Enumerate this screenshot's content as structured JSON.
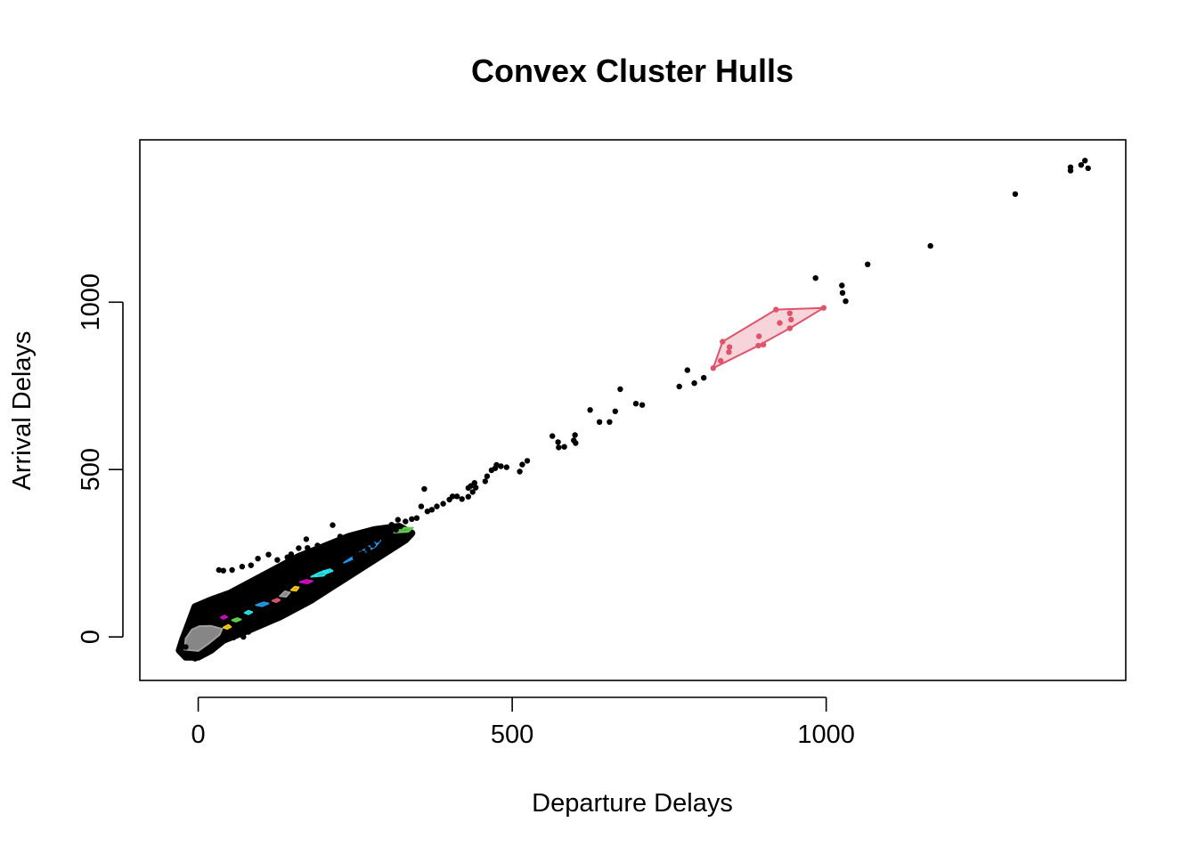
{
  "chart_data": {
    "type": "scatter",
    "title": "Convex Cluster Hulls",
    "xlabel": "Departure Delays",
    "ylabel": "Arrival Delays",
    "xlim": [
      -93,
      1477
    ],
    "ylim": [
      -130,
      1485
    ],
    "x_ticks": [
      0,
      500,
      1000
    ],
    "y_ticks": [
      0,
      500,
      1000
    ],
    "x_tick_labels": [
      "0",
      "500",
      "1000"
    ],
    "y_tick_labels": [
      "0",
      "500",
      "1000"
    ],
    "point_color": "#000000",
    "points": [
      [
        1412,
        1423
      ],
      [
        1406,
        1410
      ],
      [
        1389,
        1403
      ],
      [
        1417,
        1400
      ],
      [
        1389,
        1393
      ],
      [
        1301,
        1323
      ],
      [
        1166,
        1168
      ],
      [
        1066,
        1113
      ],
      [
        1025,
        1050
      ],
      [
        1026,
        1028
      ],
      [
        1031,
        1003
      ],
      [
        983,
        1072
      ],
      [
        779,
        797
      ],
      [
        790,
        758
      ],
      [
        805,
        774
      ],
      [
        766,
        748
      ],
      [
        672,
        740
      ],
      [
        697,
        697
      ],
      [
        707,
        693
      ],
      [
        664,
        674
      ],
      [
        624,
        678
      ],
      [
        655,
        642
      ],
      [
        639,
        642
      ],
      [
        564,
        600
      ],
      [
        573,
        582
      ],
      [
        574,
        566
      ],
      [
        583,
        568
      ],
      [
        600,
        603
      ],
      [
        598,
        587
      ],
      [
        601,
        579
      ],
      [
        524,
        526
      ],
      [
        516,
        515
      ],
      [
        512,
        494
      ],
      [
        491,
        507
      ],
      [
        482,
        510
      ],
      [
        475,
        514
      ],
      [
        473,
        504
      ],
      [
        467,
        498
      ],
      [
        460,
        480
      ],
      [
        457,
        465
      ],
      [
        440,
        460
      ],
      [
        434,
        451
      ],
      [
        430,
        445
      ],
      [
        442,
        446
      ],
      [
        437,
        433
      ],
      [
        430,
        419
      ],
      [
        420,
        412
      ],
      [
        412,
        420
      ],
      [
        400,
        410
      ],
      [
        390,
        398
      ],
      [
        380,
        390
      ],
      [
        372,
        380
      ],
      [
        365,
        375
      ],
      [
        405,
        420
      ],
      [
        360,
        442
      ],
      [
        348,
        355
      ],
      [
        340,
        352
      ],
      [
        330,
        345
      ],
      [
        322,
        330
      ],
      [
        315,
        320
      ],
      [
        305,
        310
      ],
      [
        295,
        302
      ],
      [
        290,
        305
      ],
      [
        285,
        290
      ],
      [
        278,
        275
      ],
      [
        270,
        262
      ],
      [
        262,
        250
      ],
      [
        255,
        245
      ],
      [
        250,
        238
      ],
      [
        355,
        390
      ],
      [
        318,
        350
      ],
      [
        308,
        335
      ],
      [
        300,
        322
      ],
      [
        286,
        318
      ],
      [
        272,
        300
      ],
      [
        260,
        305
      ],
      [
        240,
        290
      ],
      [
        226,
        300
      ],
      [
        214,
        334
      ],
      [
        172,
        292
      ],
      [
        190,
        273
      ],
      [
        174,
        266
      ],
      [
        160,
        265
      ],
      [
        148,
        247
      ],
      [
        142,
        238
      ],
      [
        126,
        230
      ],
      [
        112,
        246
      ],
      [
        95,
        234
      ],
      [
        84,
        214
      ],
      [
        70,
        210
      ],
      [
        54,
        200
      ],
      [
        40,
        198
      ],
      [
        33,
        200
      ],
      [
        88,
        60
      ],
      [
        88,
        30
      ],
      [
        66,
        10
      ],
      [
        80,
        15
      ],
      [
        72,
        0
      ],
      [
        56,
        -2
      ],
      [
        -20,
        -30
      ],
      [
        -30,
        -40
      ],
      [
        -15,
        -55
      ],
      [
        -5,
        -65
      ],
      [
        10,
        -50
      ],
      [
        25,
        -30
      ]
    ],
    "cloud": [
      [
        -20,
        -60
      ],
      [
        0,
        -60
      ],
      [
        20,
        -40
      ],
      [
        40,
        -10
      ],
      [
        80,
        20
      ],
      [
        130,
        60
      ],
      [
        180,
        110
      ],
      [
        230,
        170
      ],
      [
        280,
        230
      ],
      [
        330,
        290
      ],
      [
        340,
        310
      ],
      [
        320,
        330
      ],
      [
        280,
        320
      ],
      [
        240,
        300
      ],
      [
        200,
        270
      ],
      [
        160,
        240
      ],
      [
        120,
        200
      ],
      [
        80,
        160
      ],
      [
        50,
        130
      ],
      [
        20,
        110
      ],
      [
        -5,
        90
      ],
      [
        -15,
        40
      ],
      [
        -25,
        -10
      ],
      [
        -30,
        -40
      ]
    ],
    "series": [
      {
        "color": "#DF536B",
        "points": [
          [
            920,
            978
          ],
          [
            996,
            983
          ],
          [
            942,
            967
          ],
          [
            944,
            948
          ],
          [
            942,
            922
          ],
          [
            926,
            938
          ],
          [
            893,
            898
          ],
          [
            900,
            873
          ],
          [
            892,
            870
          ],
          [
            846,
            866
          ],
          [
            845,
            851
          ],
          [
            835,
            882
          ],
          [
            832,
            825
          ],
          [
            820,
            803
          ]
        ],
        "hull": [
          [
            820,
            803
          ],
          [
            835,
            882
          ],
          [
            920,
            978
          ],
          [
            996,
            983
          ],
          [
            942,
            922
          ],
          [
            892,
            870
          ]
        ]
      },
      {
        "color": "#2297E6",
        "hull": [
          [
            232,
            222
          ],
          [
            262,
            258
          ],
          [
            282,
            283
          ],
          [
            290,
            288
          ],
          [
            282,
            270
          ],
          [
            250,
            236
          ]
        ]
      },
      {
        "color": "#61D04F",
        "hull": [
          [
            312,
            312
          ],
          [
            328,
            326
          ],
          [
            342,
            326
          ],
          [
            334,
            314
          ]
        ]
      },
      {
        "color": "#28E2E5",
        "hull": [
          [
            180,
            180
          ],
          [
            194,
            193
          ],
          [
            206,
            196
          ],
          [
            200,
            183
          ]
        ]
      },
      {
        "color": "#28E2E5",
        "hull": [
          [
            198,
            196
          ],
          [
            210,
            202
          ],
          [
            214,
            197
          ],
          [
            204,
            190
          ]
        ]
      },
      {
        "color": "#CD0BBC",
        "hull": [
          [
            162,
            164
          ],
          [
            172,
            170
          ],
          [
            182,
            167
          ],
          [
            174,
            160
          ]
        ]
      },
      {
        "color": "#F5C710",
        "hull": [
          [
            148,
            140
          ],
          [
            154,
            150
          ],
          [
            160,
            148
          ],
          [
            156,
            138
          ]
        ]
      },
      {
        "color": "#9E9E9E",
        "hull": [
          [
            130,
            122
          ],
          [
            138,
            136
          ],
          [
            146,
            133
          ],
          [
            140,
            120
          ]
        ]
      },
      {
        "color": "#2297E6",
        "hull": [
          [
            92,
            95
          ],
          [
            104,
            103
          ],
          [
            112,
            100
          ],
          [
            102,
            92
          ]
        ]
      },
      {
        "color": "#DF536B",
        "hull": [
          [
            118,
            108
          ],
          [
            126,
            114
          ],
          [
            130,
            110
          ],
          [
            124,
            104
          ]
        ]
      },
      {
        "color": "#28E2E5",
        "hull": [
          [
            74,
            72
          ],
          [
            80,
            78
          ],
          [
            86,
            74
          ],
          [
            80,
            68
          ]
        ]
      },
      {
        "color": "#61D04F",
        "hull": [
          [
            54,
            50
          ],
          [
            62,
            56
          ],
          [
            68,
            52
          ],
          [
            60,
            46
          ]
        ]
      },
      {
        "color": "#CD0BBC",
        "hull": [
          [
            36,
            58
          ],
          [
            42,
            64
          ],
          [
            46,
            59
          ],
          [
            40,
            54
          ]
        ]
      },
      {
        "color": "#F5C710",
        "hull": [
          [
            40,
            28
          ],
          [
            48,
            36
          ],
          [
            52,
            30
          ],
          [
            46,
            24
          ]
        ]
      },
      {
        "color": "#9E9E9E",
        "hull": [
          [
            -22,
            -38
          ],
          [
            -20,
            -5
          ],
          [
            -10,
            22
          ],
          [
            2,
            32
          ],
          [
            20,
            33
          ],
          [
            38,
            24
          ],
          [
            34,
            6
          ],
          [
            18,
            -18
          ],
          [
            0,
            -42
          ]
        ]
      }
    ]
  }
}
